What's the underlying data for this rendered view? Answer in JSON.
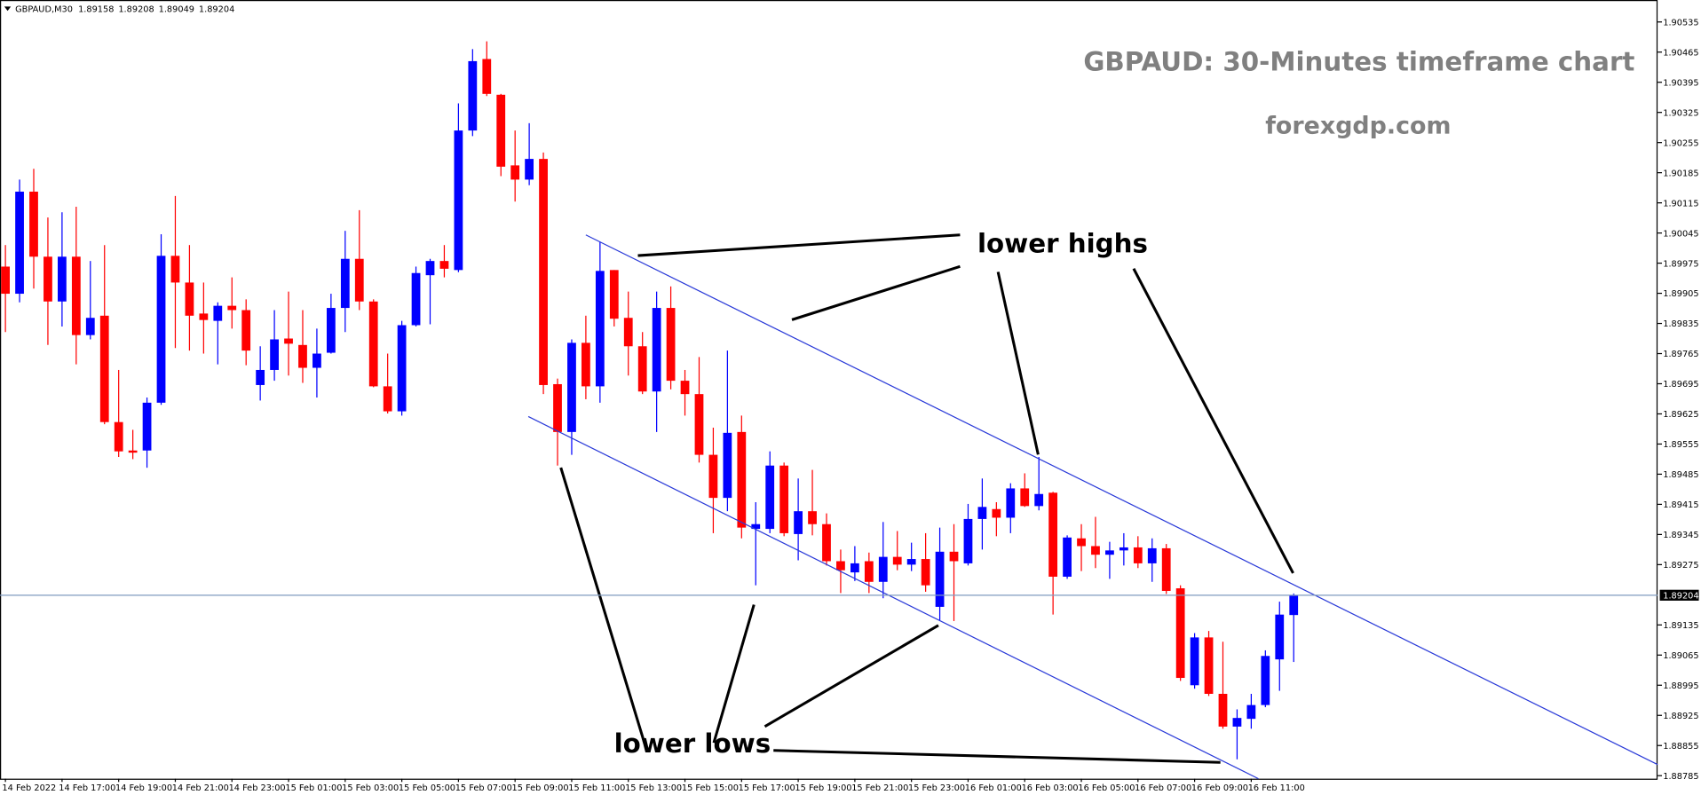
{
  "chart_data": {
    "type": "candlestick",
    "symbol": "GBPAUD,M30",
    "title": "GBPAUD: 30-Minutes timeframe chart",
    "subtitle": "forexgdp.com",
    "annotations": [
      "lower highs",
      "lower lows"
    ],
    "up_color": "#0000ff",
    "down_color": "#ff0000",
    "price_line_color": "#7f9bbf",
    "categories": [
      "14 Feb 2022",
      null,
      null,
      null,
      "14 Feb 17:00",
      null,
      null,
      null,
      "14 Feb 19:00",
      null,
      null,
      null,
      "14 Feb 21:00",
      null,
      null,
      null,
      "14 Feb 23:00",
      null,
      null,
      null,
      "15 Feb 01:00",
      null,
      null,
      null,
      "15 Feb 03:00",
      null,
      null,
      null,
      "15 Feb 05:00",
      null,
      null,
      null,
      "15 Feb 07:00",
      null,
      null,
      null,
      "15 Feb 09:00",
      null,
      null,
      null,
      "15 Feb 11:00",
      null,
      null,
      null,
      "15 Feb 13:00",
      null,
      null,
      null,
      "15 Feb 15:00",
      null,
      null,
      null,
      "15 Feb 17:00",
      null,
      null,
      null,
      "15 Feb 19:00",
      null,
      null,
      null,
      "15 Feb 21:00",
      null,
      null,
      null,
      "15 Feb 23:00",
      null,
      null,
      null,
      "16 Feb 01:00",
      null,
      null,
      null,
      "16 Feb 03:00",
      null,
      null,
      null,
      "16 Feb 05:00",
      null,
      null,
      null,
      "16 Feb 07:00",
      null,
      null,
      null,
      "16 Feb 09:00",
      null,
      null,
      null,
      "16 Feb 11:00",
      null,
      null,
      null
    ],
    "open": [
      1.89967,
      1.89904,
      1.90141,
      1.8999,
      1.89886,
      1.8999,
      1.89808,
      1.89853,
      1.89606,
      1.8954,
      1.8954,
      1.89651,
      1.89992,
      1.8993,
      1.89858,
      1.89841,
      1.89876,
      1.89866,
      1.89692,
      1.89727,
      1.898,
      1.89785,
      1.89732,
      1.89767,
      1.89871,
      1.89985,
      1.89886,
      1.89689,
      1.89631,
      1.89831,
      1.89947,
      1.8998,
      1.89959,
      1.90283,
      1.90449,
      1.90366,
      1.90202,
      1.90169,
      1.90217,
      1.89694,
      1.89583,
      1.8979,
      1.89689,
      1.89959,
      1.89848,
      1.89782,
      1.89677,
      1.89871,
      1.89702,
      1.89671,
      1.8953,
      1.8943,
      1.89583,
      1.89358,
      1.89358,
      1.89505,
      1.89346,
      1.89399,
      1.89369,
      1.89283,
      1.89257,
      1.89283,
      1.89235,
      1.89293,
      1.89275,
      1.89288,
      1.89177,
      1.89305,
      1.89278,
      1.89381,
      1.89404,
      1.89384,
      1.89452,
      1.89411,
      1.89442,
      1.89247,
      1.89336,
      1.89318,
      1.89298,
      1.89308,
      1.89315,
      1.89278,
      1.89313,
      1.8922,
      1.88995,
      1.89106,
      1.88975,
      1.88899,
      1.88917,
      1.88949,
      1.89055,
      1.89158
    ],
    "high": [
      1.90017,
      1.90169,
      1.90194,
      1.90081,
      1.90093,
      1.90106,
      1.8998,
      1.90017,
      1.89727,
      1.89588,
      1.89663,
      1.90042,
      1.90131,
      1.90017,
      1.8993,
      1.89884,
      1.89942,
      1.89891,
      1.89782,
      1.89866,
      1.89909,
      1.89866,
      1.89823,
      1.89904,
      1.9005,
      1.90098,
      1.89891,
      1.89765,
      1.89841,
      1.89967,
      1.89985,
      1.90017,
      1.90346,
      1.90472,
      1.9049,
      1.90368,
      1.90283,
      1.903,
      1.90232,
      1.89707,
      1.89798,
      1.89853,
      1.90025,
      1.89959,
      1.89909,
      1.89815,
      1.89909,
      1.89921,
      1.89727,
      1.89757,
      1.89593,
      1.89772,
      1.89621,
      1.8942,
      1.89538,
      1.89512,
      1.89475,
      1.89495,
      1.89394,
      1.8931,
      1.89318,
      1.89303,
      1.89374,
      1.89353,
      1.89326,
      1.89348,
      1.89361,
      1.89369,
      1.89416,
      1.89475,
      1.8942,
      1.89464,
      1.89487,
      1.89525,
      1.89444,
      1.89343,
      1.89369,
      1.89386,
      1.89328,
      1.89348,
      1.89341,
      1.89336,
      1.89323,
      1.89227,
      1.89116,
      1.89121,
      1.89096,
      1.88939,
      1.88975,
      1.89076,
      1.89189,
      1.89208
    ],
    "low": [
      1.89815,
      1.89884,
      1.89916,
      1.89785,
      1.89828,
      1.8974,
      1.89798,
      1.89601,
      1.89525,
      1.8952,
      1.895,
      1.89646,
      1.89778,
      1.89772,
      1.89765,
      1.8974,
      1.89823,
      1.89738,
      1.89656,
      1.89702,
      1.89714,
      1.89697,
      1.89663,
      1.89765,
      1.89815,
      1.89866,
      1.89687,
      1.89626,
      1.89621,
      1.89828,
      1.89833,
      1.89942,
      1.89954,
      1.9027,
      1.90363,
      1.90177,
      1.90118,
      1.90156,
      1.89671,
      1.89505,
      1.8953,
      1.89659,
      1.89651,
      1.89828,
      1.89714,
      1.89671,
      1.89583,
      1.89682,
      1.89621,
      1.89512,
      1.89348,
      1.89399,
      1.89336,
      1.89227,
      1.89348,
      1.89341,
      1.89285,
      1.89343,
      1.89273,
      1.89209,
      1.89237,
      1.89209,
      1.89197,
      1.89262,
      1.8926,
      1.89212,
      1.89146,
      1.89144,
      1.89273,
      1.8931,
      1.89341,
      1.89348,
      1.89409,
      1.89401,
      1.89159,
      1.89242,
      1.8926,
      1.89267,
      1.89242,
      1.89273,
      1.89267,
      1.89235,
      1.89207,
      1.89005,
      1.88987,
      1.8897,
      1.88894,
      1.88823,
      1.88894,
      1.88944,
      1.88982,
      1.89049
    ],
    "close": [
      1.89904,
      1.90141,
      1.8999,
      1.89886,
      1.8999,
      1.89808,
      1.89848,
      1.89606,
      1.89538,
      1.89535,
      1.89651,
      1.89992,
      1.8993,
      1.89853,
      1.89843,
      1.89876,
      1.89866,
      1.89772,
      1.89727,
      1.89798,
      1.89788,
      1.89732,
      1.89765,
      1.89871,
      1.89985,
      1.89886,
      1.89689,
      1.89631,
      1.89831,
      1.89952,
      1.8998,
      1.89962,
      1.90283,
      1.90444,
      1.90368,
      1.90199,
      1.90169,
      1.90217,
      1.89692,
      1.89583,
      1.8979,
      1.89689,
      1.89957,
      1.89846,
      1.89782,
      1.89677,
      1.89871,
      1.89702,
      1.89671,
      1.8953,
      1.8943,
      1.89581,
      1.89361,
      1.89369,
      1.89505,
      1.89348,
      1.89399,
      1.89369,
      1.89283,
      1.89262,
      1.89278,
      1.89235,
      1.89293,
      1.89275,
      1.89288,
      1.89227,
      1.89305,
      1.89283,
      1.89381,
      1.89409,
      1.89384,
      1.89452,
      1.89411,
      1.89439,
      1.89247,
      1.89338,
      1.89318,
      1.89298,
      1.89308,
      1.89315,
      1.89278,
      1.89313,
      1.89214,
      1.89012,
      1.89106,
      1.88975,
      1.88899,
      1.88919,
      1.88949,
      1.89063,
      1.89159,
      1.89204
    ],
    "ylim": [
      1.88778,
      1.90586
    ],
    "yticks": [
      1.90535,
      1.90465,
      1.90395,
      1.90325,
      1.90255,
      1.90185,
      1.90115,
      1.90045,
      1.89975,
      1.89905,
      1.89835,
      1.89765,
      1.89695,
      1.89625,
      1.89555,
      1.89485,
      1.89415,
      1.89345,
      1.89275,
      1.89135,
      1.89065,
      1.88995,
      1.88925,
      1.88855,
      1.88785
    ]
  }
}
